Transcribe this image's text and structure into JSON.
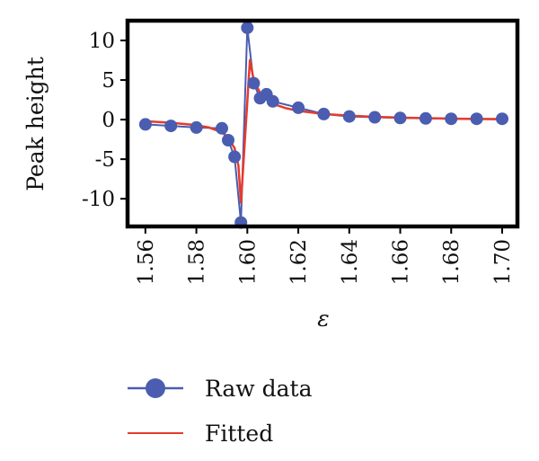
{
  "chart_data": {
    "type": "line",
    "xlabel": "ε",
    "ylabel": "Peak height",
    "xlim": [
      1.553,
      1.706
    ],
    "ylim": [
      -13.5,
      12.5
    ],
    "x_ticks": [
      1.56,
      1.58,
      1.6,
      1.62,
      1.64,
      1.66,
      1.68,
      1.7
    ],
    "x_tick_labels": [
      "1.56",
      "1.58",
      "1.60",
      "1.62",
      "1.64",
      "1.66",
      "1.68",
      "1.70"
    ],
    "y_ticks": [
      10,
      5,
      0,
      -5,
      -10
    ],
    "y_tick_labels": [
      "10",
      "5",
      "0",
      "-5",
      "-10"
    ],
    "grid": false,
    "legend_position": "bottom",
    "series": [
      {
        "name": "Raw data",
        "color": "#4a5db0",
        "marker": "circle",
        "points": [
          [
            1.56,
            -0.6
          ],
          [
            1.57,
            -0.8
          ],
          [
            1.58,
            -1.0
          ],
          [
            1.59,
            -1.1
          ],
          [
            1.5925,
            -2.6
          ],
          [
            1.595,
            -4.7
          ],
          [
            1.5975,
            -13.0
          ],
          [
            1.6,
            11.6
          ],
          [
            1.6025,
            4.6
          ],
          [
            1.605,
            2.7
          ],
          [
            1.6075,
            3.2
          ],
          [
            1.61,
            2.3
          ],
          [
            1.62,
            1.5
          ],
          [
            1.63,
            0.7
          ],
          [
            1.64,
            0.4
          ],
          [
            1.65,
            0.3
          ],
          [
            1.66,
            0.2
          ],
          [
            1.67,
            0.15
          ],
          [
            1.68,
            0.1
          ],
          [
            1.69,
            0.1
          ],
          [
            1.7,
            0.1
          ]
        ]
      },
      {
        "name": "Fitted",
        "color": "#e53b2e",
        "marker": "none",
        "points": [
          [
            1.56,
            -0.2
          ],
          [
            1.57,
            -0.4
          ],
          [
            1.58,
            -0.7
          ],
          [
            1.585,
            -1.0
          ],
          [
            1.59,
            -1.6
          ],
          [
            1.5925,
            -2.3
          ],
          [
            1.595,
            -3.6
          ],
          [
            1.5965,
            -5.8
          ],
          [
            1.5975,
            -10.5
          ],
          [
            1.601,
            7.5
          ],
          [
            1.6025,
            5.0
          ],
          [
            1.605,
            3.4
          ],
          [
            1.6075,
            2.6
          ],
          [
            1.61,
            2.0
          ],
          [
            1.615,
            1.45
          ],
          [
            1.62,
            1.1
          ],
          [
            1.63,
            0.7
          ],
          [
            1.64,
            0.5
          ],
          [
            1.65,
            0.35
          ],
          [
            1.66,
            0.25
          ],
          [
            1.67,
            0.18
          ],
          [
            1.68,
            0.12
          ],
          [
            1.69,
            0.08
          ],
          [
            1.7,
            0.05
          ]
        ]
      }
    ]
  }
}
